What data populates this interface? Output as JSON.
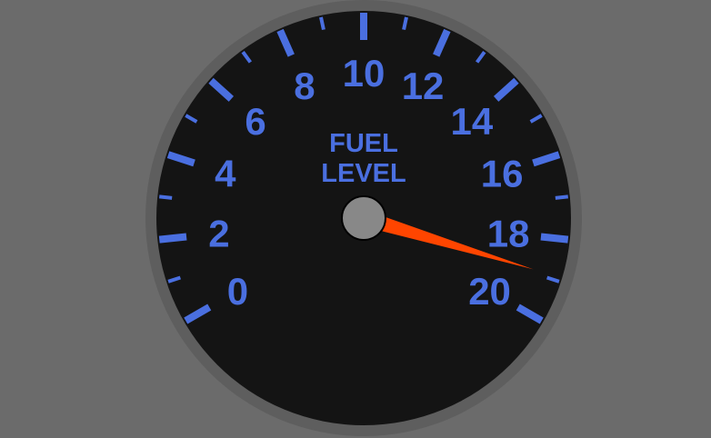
{
  "gauge": {
    "title_lines": [
      "FUEL",
      "LEVEL"
    ],
    "min": 0,
    "max": 20,
    "value": 18.9,
    "major_step": 2,
    "minor_step": 1,
    "sweep_start_deg": 210,
    "sweep_end_deg": -30,
    "tick_labels": [
      "0",
      "2",
      "4",
      "6",
      "8",
      "10",
      "12",
      "14",
      "16",
      "18",
      "20"
    ],
    "colors": {
      "background": "#6b6b6b",
      "bezel": "#5e5e5e",
      "face": "#141414",
      "ticks": "#4a6fe0",
      "labels": "#4a6fe0",
      "needle": "#ff4500",
      "hub": "#888888"
    }
  }
}
